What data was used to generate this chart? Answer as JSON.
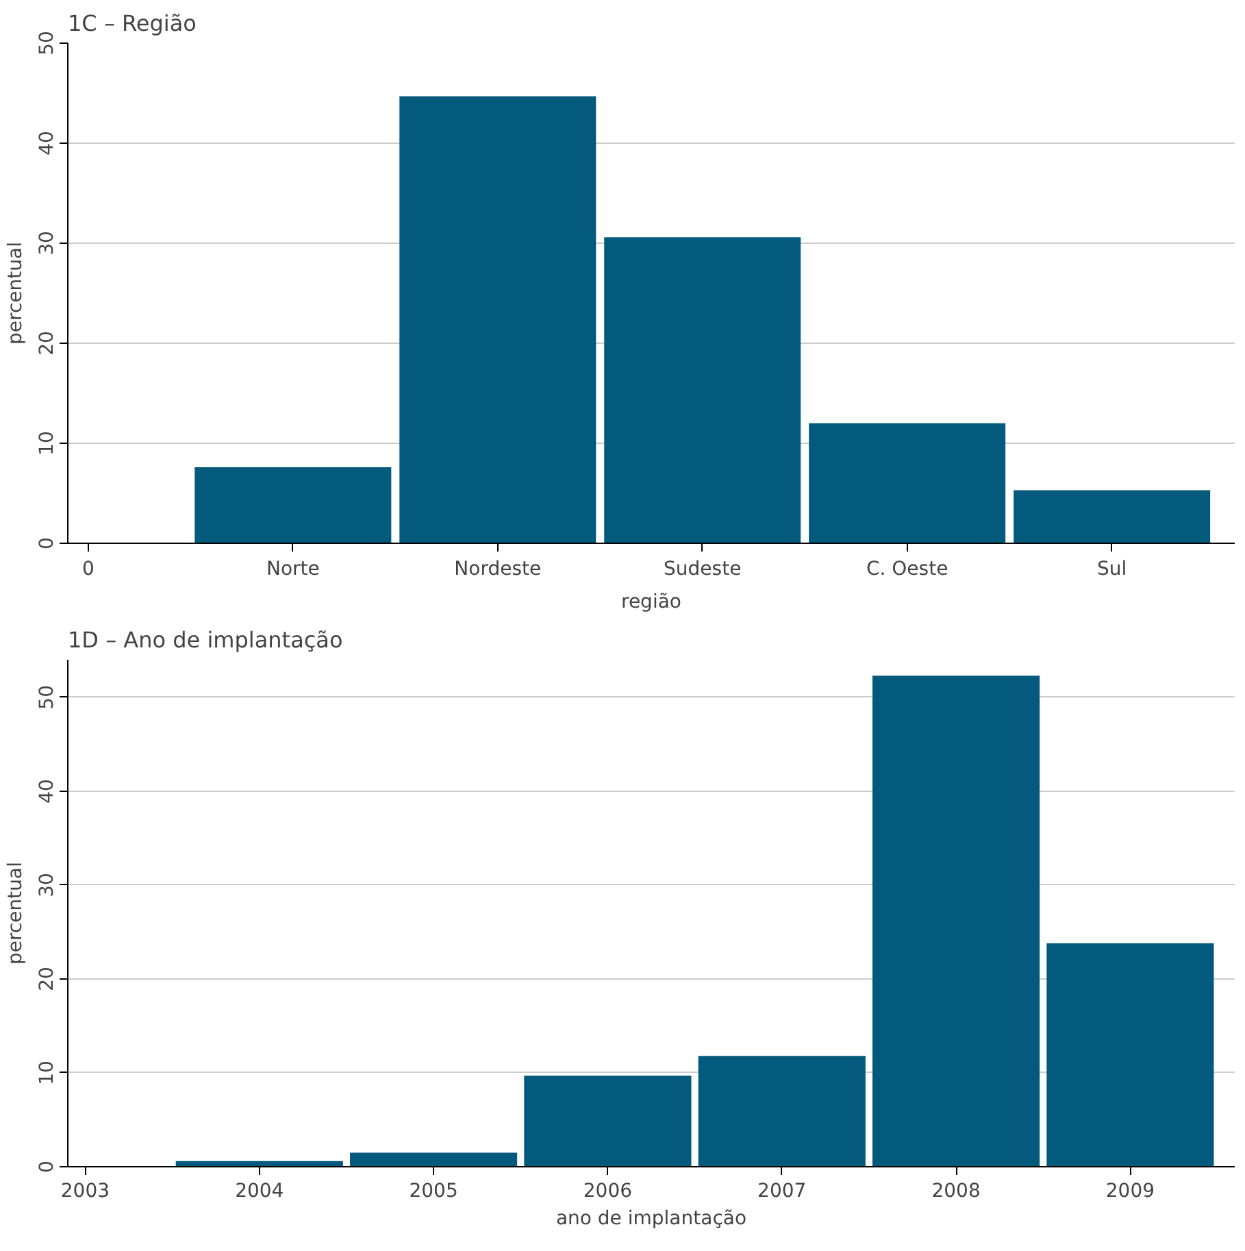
{
  "chart_data": [
    {
      "type": "bar",
      "title": "1C – Região",
      "categories": [
        "0",
        "Norte",
        "Nordeste",
        "Sudeste",
        "C. Oeste",
        "Sul"
      ],
      "values": [
        0,
        7.6,
        44.7,
        30.6,
        12.0,
        5.3
      ],
      "color": "#035a7d",
      "xlabel": "região",
      "ylabel": "percentual",
      "ylim": [
        0,
        50
      ],
      "yticks": [
        0,
        10,
        20,
        30,
        40,
        50
      ],
      "grid": "y"
    },
    {
      "type": "bar",
      "title": "1D – Ano de implantação",
      "categories": [
        "2003",
        "2004",
        "2005",
        "2006",
        "2007",
        "2008",
        "2009"
      ],
      "values": [
        0,
        0.6,
        1.5,
        9.7,
        11.8,
        52.3,
        23.8
      ],
      "color": "#035a7d",
      "xlabel": "ano de implantação",
      "ylabel": "percentual",
      "ylim": [
        0,
        54
      ],
      "yticks": [
        0,
        10,
        20,
        30,
        40,
        50
      ],
      "grid": "y"
    }
  ]
}
